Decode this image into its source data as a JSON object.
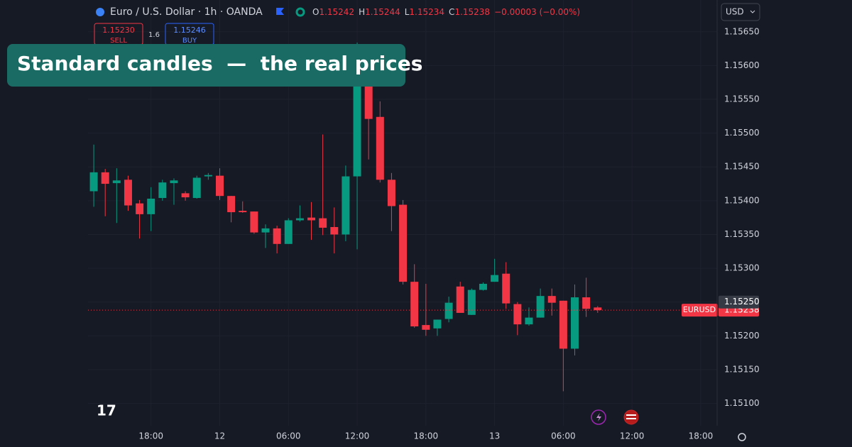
{
  "header": {
    "symbol": "Euro / U.S. Dollar · 1h · OANDA",
    "ohlc": [
      {
        "key": "O",
        "value": "1.15242"
      },
      {
        "key": "H",
        "value": "1.15244"
      },
      {
        "key": "L",
        "value": "1.15234"
      },
      {
        "key": "C",
        "value": "1.15238"
      }
    ],
    "change": "−0.00003 (−0.00%)",
    "sell": {
      "price": "1.15230",
      "label": "SELL"
    },
    "spread": "1.6",
    "buy": {
      "price": "1.15246",
      "label": "BUY"
    },
    "currency": "USD"
  },
  "banner": "Standard candles  —  the real prices",
  "chart_data": {
    "type": "candlestick",
    "categories": [
      null,
      null,
      null,
      null,
      null,
      "18:00",
      null,
      null,
      null,
      null,
      null,
      "12",
      null,
      null,
      null,
      null,
      null,
      "06:00",
      null,
      null,
      null,
      null,
      null,
      "12:00",
      null,
      null,
      null,
      null,
      null,
      "18:00",
      null,
      null,
      null,
      null,
      null,
      "13",
      null,
      null,
      null,
      null,
      null,
      "06:00",
      null,
      null,
      null,
      null,
      null,
      "12:00",
      null,
      null,
      null,
      null,
      null,
      "18:00"
    ],
    "open": [
      1.15414,
      1.15442,
      1.15426,
      1.15431,
      1.15396,
      1.1538,
      1.15404,
      1.15426,
      1.15411,
      1.15404,
      1.15436,
      1.15437,
      1.15407,
      1.15385,
      1.15384,
      1.15353,
      1.15359,
      1.15336,
      1.15371,
      1.15375,
      1.15374,
      1.15361,
      1.1535,
      1.15436,
      1.15571,
      1.15524,
      1.15431,
      1.15394,
      1.1528,
      1.15216,
      1.15211,
      1.15225,
      1.15273,
      1.15231,
      1.15268,
      1.1528,
      1.15292,
      1.15247,
      1.15217,
      1.15227,
      1.15259,
      1.15252,
      1.15181,
      1.15257,
      1.15242,
      null,
      null,
      null,
      null,
      null,
      null,
      null,
      null,
      null
    ],
    "high": [
      1.15483,
      1.15447,
      1.15448,
      1.15437,
      1.15401,
      1.1542,
      1.15431,
      1.15433,
      1.15414,
      1.15437,
      1.15441,
      1.15448,
      1.15407,
      1.15399,
      1.15384,
      1.15365,
      1.15363,
      1.15374,
      1.15393,
      1.15398,
      1.15498,
      1.1539,
      1.15452,
      1.15634,
      1.15598,
      1.15547,
      1.15441,
      1.15401,
      1.15306,
      1.15277,
      1.15224,
      1.15258,
      1.1528,
      1.1527,
      1.15279,
      1.15314,
      1.15309,
      1.1525,
      1.15242,
      1.1527,
      1.1527,
      1.15252,
      1.15276,
      1.15286,
      1.15244,
      null,
      null,
      null,
      null,
      null,
      null,
      null,
      null,
      null
    ],
    "low": [
      1.15391,
      1.15377,
      1.15367,
      1.15385,
      1.15344,
      1.15355,
      1.154,
      1.15394,
      1.154,
      1.15403,
      1.15431,
      1.15401,
      1.15368,
      1.15382,
      1.15351,
      1.1533,
      1.15322,
      1.15336,
      1.15369,
      1.15342,
      1.15349,
      1.15322,
      1.1534,
      1.15328,
      1.15461,
      1.15427,
      1.15355,
      1.15276,
      1.15212,
      1.152,
      1.152,
      1.1522,
      1.15234,
      1.15231,
      1.15267,
      1.1528,
      1.1524,
      1.15201,
      1.15215,
      1.15227,
      1.1523,
      1.15118,
      1.15171,
      1.15228,
      1.15234,
      null,
      null,
      null,
      null,
      null,
      null,
      null,
      null,
      null
    ],
    "close": [
      1.15442,
      1.15425,
      1.1543,
      1.15393,
      1.1538,
      1.15403,
      1.15427,
      1.1543,
      1.15405,
      1.15434,
      1.15438,
      1.15407,
      1.15383,
      1.15383,
      1.15353,
      1.15359,
      1.15336,
      1.15371,
      1.15374,
      1.15371,
      1.1536,
      1.1535,
      1.15436,
      1.15573,
      1.15521,
      1.15431,
      1.15392,
      1.1528,
      1.15214,
      1.15209,
      1.15224,
      1.15249,
      1.15234,
      1.15268,
      1.15277,
      1.1529,
      1.15248,
      1.15217,
      1.15227,
      1.15259,
      1.15249,
      1.15181,
      1.15257,
      1.1524,
      1.15238,
      null,
      null,
      null,
      null,
      null,
      null,
      null,
      null,
      null
    ],
    "up_color": "#089981",
    "down_color": "#f23645",
    "ylim": [
      1.15067,
      1.15697
    ],
    "yticks": [
      {
        "value": 1.151,
        "label": "1.15100"
      },
      {
        "value": 1.1515,
        "label": "1.15150"
      },
      {
        "value": 1.152,
        "label": "1.15200"
      },
      {
        "value": 1.1525,
        "label": "1.15250"
      },
      {
        "value": 1.153,
        "label": "1.15300"
      },
      {
        "value": 1.1535,
        "label": "1.15350"
      },
      {
        "value": 1.154,
        "label": "1.15400"
      },
      {
        "value": 1.1545,
        "label": "1.15450"
      },
      {
        "value": 1.155,
        "label": "1.15500"
      },
      {
        "value": 1.1555,
        "label": "1.15550"
      },
      {
        "value": 1.156,
        "label": "1.15600"
      },
      {
        "value": 1.1565,
        "label": "1.15650"
      }
    ],
    "grid": true,
    "price_tag": {
      "symbol": "EURUSD",
      "value": 1.15238,
      "label": "1.15238"
    },
    "hover_tag": {
      "value": 1.1525,
      "label": "1.15250"
    }
  }
}
